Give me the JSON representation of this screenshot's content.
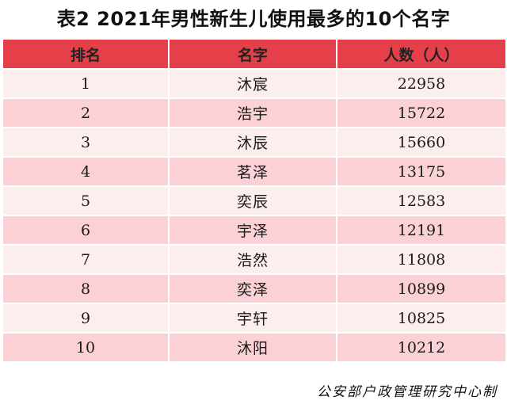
{
  "title": "表2  2021年男性新生儿使用最多的10个名字",
  "colors": {
    "header_bg": "#e5404a",
    "row_even_bg": "#fdeeee",
    "row_odd_bg": "#fbd1d5"
  },
  "headers": {
    "rank": "排名",
    "name": "名字",
    "count": "人数（人）"
  },
  "rows": [
    {
      "rank": "1",
      "name": "沐宸",
      "count": "22958"
    },
    {
      "rank": "2",
      "name": "浩宇",
      "count": "15722"
    },
    {
      "rank": "3",
      "name": "沐辰",
      "count": "15660"
    },
    {
      "rank": "4",
      "name": "茗泽",
      "count": "13175"
    },
    {
      "rank": "5",
      "name": "奕辰",
      "count": "12583"
    },
    {
      "rank": "6",
      "name": "宇泽",
      "count": "12191"
    },
    {
      "rank": "7",
      "name": "浩然",
      "count": "11808"
    },
    {
      "rank": "8",
      "name": "奕泽",
      "count": "10899"
    },
    {
      "rank": "9",
      "name": "宇轩",
      "count": "10825"
    },
    {
      "rank": "10",
      "name": "沐阳",
      "count": "10212"
    }
  ],
  "source": "公安部户政管理研究中心制"
}
